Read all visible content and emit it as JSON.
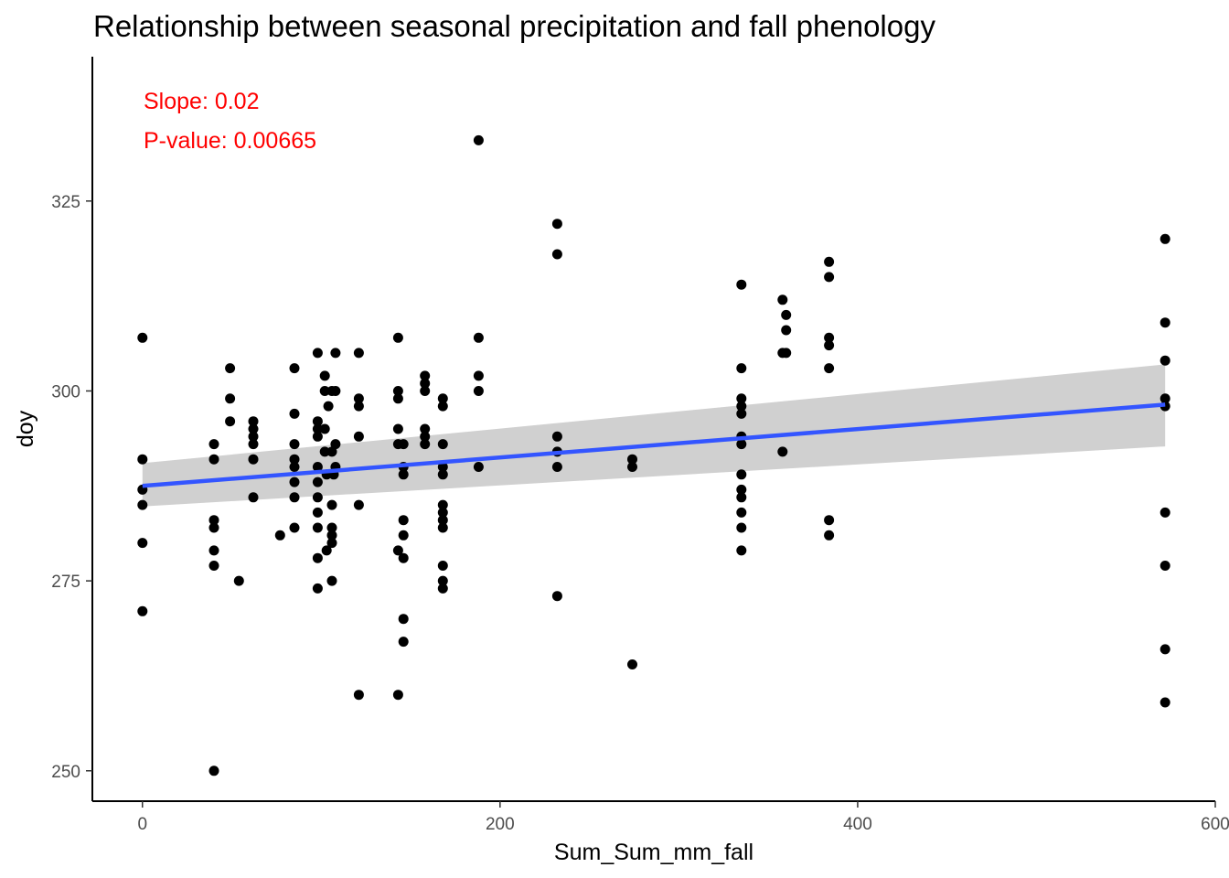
{
  "chart_data": {
    "type": "scatter",
    "title": "Relationship between seasonal precipitation and fall phenology",
    "xlabel": "Sum_Sum_mm_fall",
    "ylabel": "doy",
    "xlim": [
      -28,
      600
    ],
    "ylim": [
      246,
      344
    ],
    "x_ticks": [
      0,
      200,
      400,
      600
    ],
    "y_ticks": [
      250,
      275,
      300,
      325
    ],
    "grid": false,
    "annotations": [
      "Slope: 0.02",
      "P-value: 0.00665"
    ],
    "annotation_color": "#ff0000",
    "point_color": "#000000",
    "fit_color": "#3355ff",
    "ribbon_color": "#d0d0d0",
    "fit": {
      "x": [
        0,
        572
      ],
      "y": [
        287.5,
        298.2
      ],
      "lower": [
        284.8,
        292.7
      ],
      "upper": [
        290.5,
        303.5
      ]
    },
    "points": [
      [
        0,
        307
      ],
      [
        0,
        291
      ],
      [
        0,
        287
      ],
      [
        0,
        285
      ],
      [
        0,
        280
      ],
      [
        0,
        271
      ],
      [
        40,
        293
      ],
      [
        40,
        291
      ],
      [
        40,
        283
      ],
      [
        40,
        282
      ],
      [
        40,
        279
      ],
      [
        40,
        277
      ],
      [
        40,
        250
      ],
      [
        49,
        303
      ],
      [
        49,
        299
      ],
      [
        49,
        296
      ],
      [
        54,
        275
      ],
      [
        62,
        296
      ],
      [
        62,
        295
      ],
      [
        62,
        294
      ],
      [
        62,
        293
      ],
      [
        62,
        291
      ],
      [
        62,
        286
      ],
      [
        77,
        281
      ],
      [
        85,
        303
      ],
      [
        85,
        297
      ],
      [
        85,
        293
      ],
      [
        85,
        291
      ],
      [
        85,
        290
      ],
      [
        85,
        288
      ],
      [
        85,
        286
      ],
      [
        85,
        282
      ],
      [
        98,
        305
      ],
      [
        98,
        296
      ],
      [
        98,
        295
      ],
      [
        98,
        294
      ],
      [
        98,
        290
      ],
      [
        98,
        288
      ],
      [
        98,
        286
      ],
      [
        98,
        284
      ],
      [
        98,
        282
      ],
      [
        98,
        278
      ],
      [
        98,
        274
      ],
      [
        102,
        302
      ],
      [
        102,
        300
      ],
      [
        102,
        295
      ],
      [
        102,
        292
      ],
      [
        103,
        289
      ],
      [
        103,
        279
      ],
      [
        104,
        298
      ],
      [
        106,
        300
      ],
      [
        106,
        292
      ],
      [
        106,
        285
      ],
      [
        106,
        282
      ],
      [
        106,
        281
      ],
      [
        106,
        280
      ],
      [
        106,
        275
      ],
      [
        107,
        289
      ],
      [
        108,
        305
      ],
      [
        108,
        300
      ],
      [
        108,
        293
      ],
      [
        108,
        290
      ],
      [
        121,
        305
      ],
      [
        121,
        299
      ],
      [
        121,
        298
      ],
      [
        121,
        294
      ],
      [
        121,
        285
      ],
      [
        121,
        260
      ],
      [
        143,
        307
      ],
      [
        143,
        300
      ],
      [
        143,
        299
      ],
      [
        143,
        295
      ],
      [
        143,
        293
      ],
      [
        143,
        279
      ],
      [
        143,
        260
      ],
      [
        146,
        293
      ],
      [
        146,
        290
      ],
      [
        146,
        289
      ],
      [
        146,
        283
      ],
      [
        146,
        281
      ],
      [
        146,
        278
      ],
      [
        146,
        270
      ],
      [
        146,
        267
      ],
      [
        158,
        302
      ],
      [
        158,
        301
      ],
      [
        158,
        300
      ],
      [
        158,
        295
      ],
      [
        158,
        294
      ],
      [
        158,
        293
      ],
      [
        168,
        299
      ],
      [
        168,
        298
      ],
      [
        168,
        293
      ],
      [
        168,
        290
      ],
      [
        168,
        289
      ],
      [
        168,
        285
      ],
      [
        168,
        284
      ],
      [
        168,
        283
      ],
      [
        168,
        282
      ],
      [
        168,
        277
      ],
      [
        168,
        275
      ],
      [
        168,
        274
      ],
      [
        188,
        333
      ],
      [
        188,
        307
      ],
      [
        188,
        302
      ],
      [
        188,
        300
      ],
      [
        188,
        290
      ],
      [
        232,
        322
      ],
      [
        232,
        318
      ],
      [
        232,
        294
      ],
      [
        232,
        292
      ],
      [
        232,
        290
      ],
      [
        232,
        273
      ],
      [
        274,
        291
      ],
      [
        274,
        290
      ],
      [
        274,
        264
      ],
      [
        335,
        314
      ],
      [
        335,
        303
      ],
      [
        335,
        299
      ],
      [
        335,
        298
      ],
      [
        335,
        297
      ],
      [
        335,
        294
      ],
      [
        335,
        293
      ],
      [
        335,
        289
      ],
      [
        335,
        287
      ],
      [
        335,
        286
      ],
      [
        335,
        284
      ],
      [
        335,
        282
      ],
      [
        335,
        279
      ],
      [
        358,
        312
      ],
      [
        358,
        305
      ],
      [
        358,
        292
      ],
      [
        360,
        310
      ],
      [
        360,
        308
      ],
      [
        360,
        305
      ],
      [
        384,
        317
      ],
      [
        384,
        315
      ],
      [
        384,
        307
      ],
      [
        384,
        306
      ],
      [
        384,
        303
      ],
      [
        384,
        283
      ],
      [
        384,
        281
      ],
      [
        572,
        320
      ],
      [
        572,
        309
      ],
      [
        572,
        304
      ],
      [
        572,
        299
      ],
      [
        572,
        298
      ],
      [
        572,
        284
      ],
      [
        572,
        277
      ],
      [
        572,
        266
      ],
      [
        572,
        259
      ]
    ]
  }
}
